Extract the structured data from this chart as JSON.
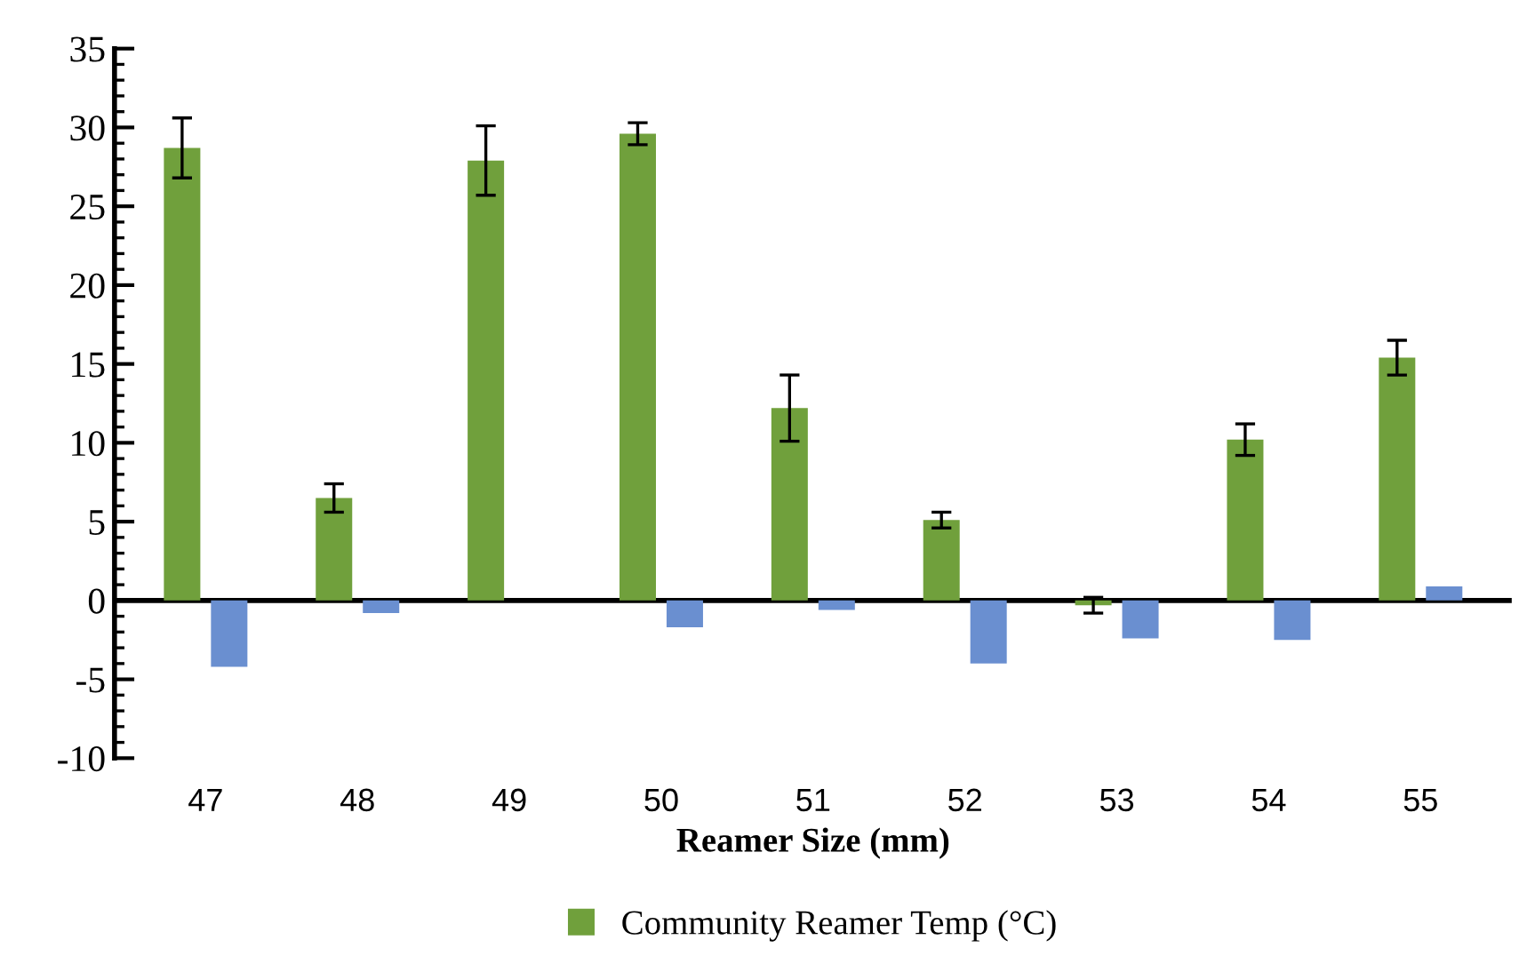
{
  "chart_data": {
    "type": "bar",
    "xlabel": "Reamer Size (mm)",
    "categories": [
      "47",
      "48",
      "49",
      "50",
      "51",
      "52",
      "53",
      "54",
      "55"
    ],
    "series": [
      {
        "name": "Community Reamer Temp (°C)",
        "color": "#70a03c",
        "values": [
          28.7,
          6.5,
          27.9,
          29.6,
          12.2,
          5.1,
          -0.3,
          10.2,
          15.4
        ],
        "errors": [
          1.9,
          0.9,
          2.2,
          0.7,
          2.1,
          0.5,
          0.5,
          1.0,
          1.1
        ]
      },
      {
        "color": "#6a8fd0",
        "values": [
          -4.2,
          -0.8,
          null,
          -1.7,
          -0.6,
          -4.0,
          -2.4,
          -2.5,
          0.9
        ]
      }
    ],
    "ylim": [
      -10,
      35
    ],
    "yticks": [
      -10,
      -5,
      0,
      5,
      10,
      15,
      20,
      25,
      30,
      35
    ],
    "legend": "bottom"
  }
}
